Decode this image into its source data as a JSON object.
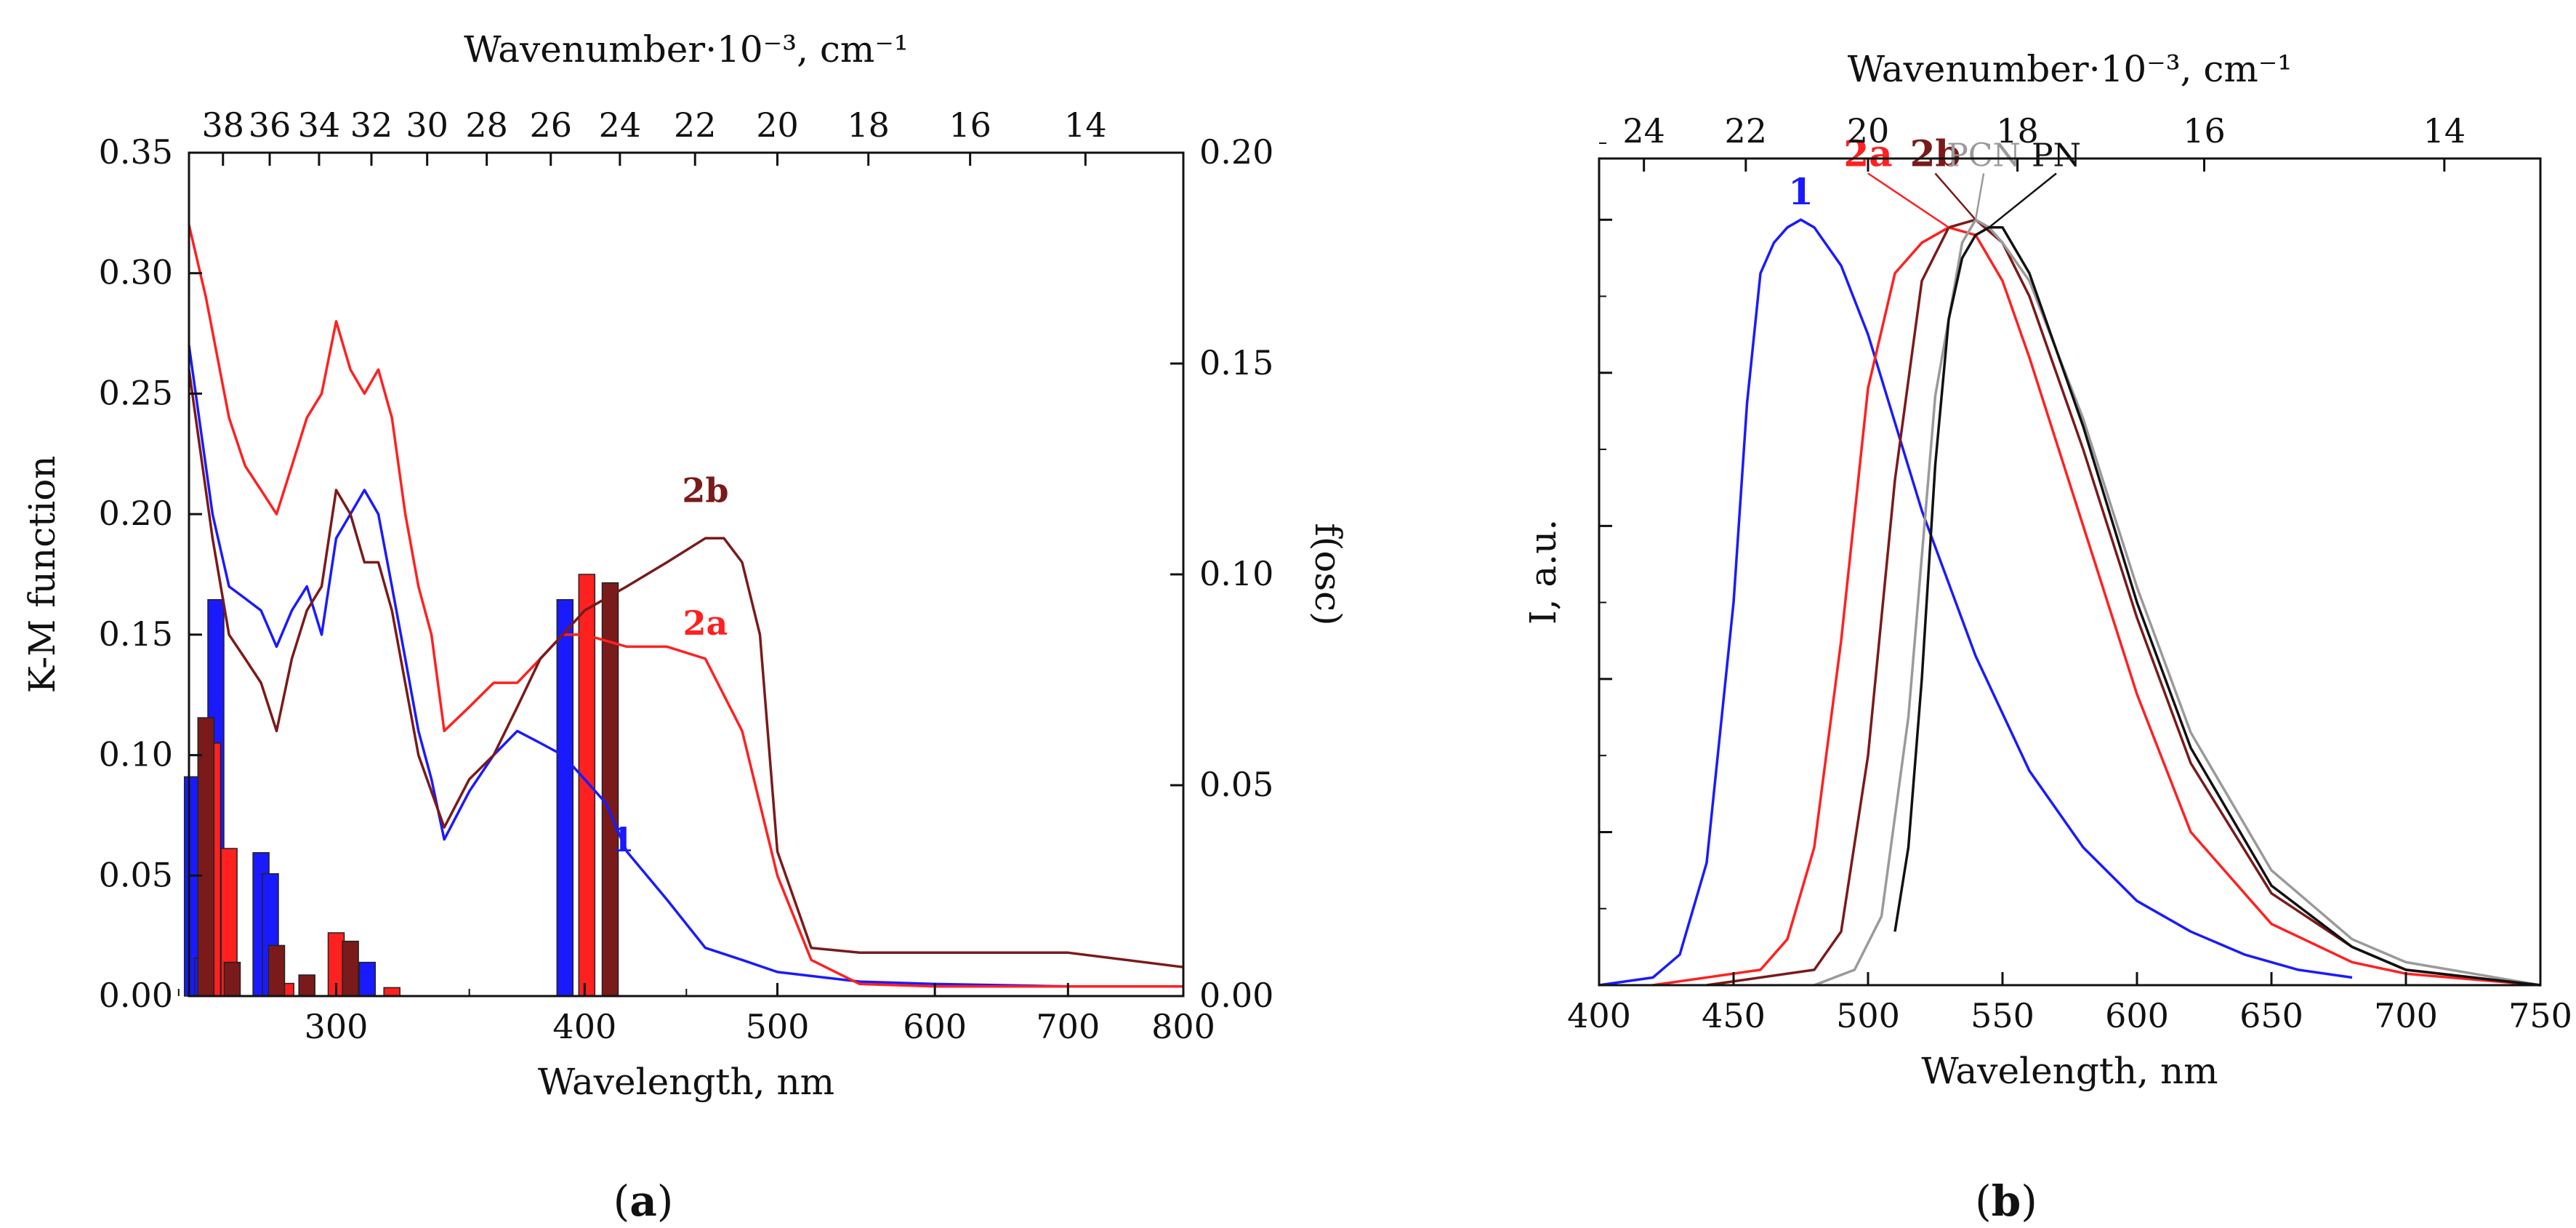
{
  "panel_labels": {
    "a_open": "(",
    "a_letter": "a",
    "a_close": ")",
    "b_open": "(",
    "b_letter": "b",
    "b_close": ")"
  },
  "colors": {
    "c1": "#1a1aff",
    "c2a": "#ff2020",
    "c2b": "#7a1a1a",
    "cPCN": "#9a9a9a",
    "cPN": "#111111"
  },
  "chart_data": [
    {
      "id": "a",
      "type": "line",
      "xscale": "log",
      "xlabel": "Wavelength, nm",
      "ylabel": "K-M function",
      "y2label": "f(osc)",
      "top_xlabel": "Wavenumber·10⁻³, cm⁻¹",
      "xlim": [
        253,
        800
      ],
      "ylim": [
        0,
        0.35
      ],
      "y2lim": [
        0,
        0.2
      ],
      "xticks": [
        {
          "v": 300,
          "l": "300"
        },
        {
          "v": 400,
          "l": "400"
        },
        {
          "v": 500,
          "l": "500"
        },
        {
          "v": 600,
          "l": "600"
        },
        {
          "v": 700,
          "l": "700"
        },
        {
          "v": 800,
          "l": "800"
        }
      ],
      "yticks": [
        {
          "v": 0,
          "l": "0.00"
        },
        {
          "v": 0.05,
          "l": "0.05"
        },
        {
          "v": 0.1,
          "l": "0.10"
        },
        {
          "v": 0.15,
          "l": "0.15"
        },
        {
          "v": 0.2,
          "l": "0.20"
        },
        {
          "v": 0.25,
          "l": "0.25"
        },
        {
          "v": 0.3,
          "l": "0.30"
        },
        {
          "v": 0.35,
          "l": "0.35"
        }
      ],
      "y2ticks": [
        {
          "v": 0,
          "l": "0.00"
        },
        {
          "v": 0.05,
          "l": "0.05"
        },
        {
          "v": 0.1,
          "l": "0.10"
        },
        {
          "v": 0.15,
          "l": "0.15"
        },
        {
          "v": 0.2,
          "l": "0.20"
        }
      ],
      "top_ticks": [
        {
          "v": 38,
          "l": "38"
        },
        {
          "v": 36,
          "l": "36"
        },
        {
          "v": 34,
          "l": "34"
        },
        {
          "v": 32,
          "l": "32"
        },
        {
          "v": 30,
          "l": "30"
        },
        {
          "v": 28,
          "l": "28"
        },
        {
          "v": 26,
          "l": "26"
        },
        {
          "v": 24,
          "l": "24"
        },
        {
          "v": 22,
          "l": "22"
        },
        {
          "v": 20,
          "l": "20"
        },
        {
          "v": 18,
          "l": "18"
        },
        {
          "v": 16,
          "l": "16"
        },
        {
          "v": 14,
          "l": "14"
        }
      ],
      "series": [
        {
          "name": "1",
          "color": "#1a1aff",
          "label_at": [
            418,
            0.06
          ],
          "x": [
            253,
            260,
            265,
            270,
            275,
            280,
            285,
            290,
            295,
            300,
            305,
            310,
            315,
            320,
            325,
            330,
            335,
            340,
            350,
            360,
            370,
            380,
            390,
            400,
            410,
            420,
            440,
            460,
            480,
            500,
            550,
            600,
            700,
            800
          ],
          "y": [
            0.27,
            0.2,
            0.17,
            0.165,
            0.16,
            0.145,
            0.16,
            0.17,
            0.15,
            0.19,
            0.2,
            0.21,
            0.2,
            0.17,
            0.14,
            0.11,
            0.09,
            0.065,
            0.085,
            0.1,
            0.11,
            0.105,
            0.1,
            0.09,
            0.08,
            0.06,
            0.04,
            0.02,
            0.015,
            0.01,
            0.006,
            0.005,
            0.004,
            0.004
          ]
        },
        {
          "name": "2a",
          "color": "#ff2020",
          "label_at": [
            460,
            0.15
          ],
          "x": [
            253,
            258,
            265,
            270,
            275,
            280,
            285,
            290,
            295,
            300,
            305,
            310,
            315,
            320,
            325,
            330,
            335,
            340,
            350,
            360,
            370,
            380,
            390,
            400,
            420,
            440,
            460,
            480,
            500,
            520,
            550,
            600,
            700,
            800
          ],
          "y": [
            0.32,
            0.29,
            0.24,
            0.22,
            0.21,
            0.2,
            0.22,
            0.24,
            0.25,
            0.28,
            0.26,
            0.25,
            0.26,
            0.24,
            0.2,
            0.17,
            0.15,
            0.11,
            0.12,
            0.13,
            0.13,
            0.14,
            0.15,
            0.15,
            0.145,
            0.145,
            0.14,
            0.11,
            0.05,
            0.015,
            0.005,
            0.004,
            0.004,
            0.004
          ]
        },
        {
          "name": "2b",
          "color": "#7a1a1a",
          "label_at": [
            460,
            0.205
          ],
          "x": [
            253,
            260,
            265,
            270,
            275,
            280,
            285,
            290,
            295,
            300,
            305,
            310,
            315,
            320,
            330,
            340,
            350,
            360,
            370,
            380,
            390,
            400,
            420,
            440,
            460,
            470,
            480,
            490,
            500,
            520,
            550,
            600,
            700,
            800
          ],
          "y": [
            0.26,
            0.19,
            0.15,
            0.14,
            0.13,
            0.11,
            0.14,
            0.16,
            0.17,
            0.21,
            0.2,
            0.18,
            0.18,
            0.16,
            0.1,
            0.07,
            0.09,
            0.1,
            0.12,
            0.14,
            0.15,
            0.16,
            0.17,
            0.18,
            0.19,
            0.19,
            0.18,
            0.15,
            0.06,
            0.02,
            0.018,
            0.018,
            0.018,
            0.012
          ]
        }
      ],
      "bars": [
        {
          "name": "1",
          "color": "#1a1aff",
          "x": [
            254,
            257,
            259,
            261,
            275,
            278,
            306,
            311,
            391
          ],
          "f": [
            0.052,
            0.009,
            0.015,
            0.094,
            0.034,
            0.029,
            0.005,
            0.008,
            0.094
          ]
        },
        {
          "name": "2a",
          "color": "#ff2020",
          "x": [
            260,
            265,
            283,
            300,
            320,
            401
          ],
          "f": [
            0.06,
            0.035,
            0.003,
            0.015,
            0.002,
            0.1
          ]
        },
        {
          "name": "2b",
          "color": "#7a1a1a",
          "x": [
            258,
            266,
            280,
            290,
            305,
            412
          ],
          "f": [
            0.066,
            0.008,
            0.012,
            0.005,
            0.013,
            0.098
          ]
        }
      ]
    },
    {
      "id": "b",
      "type": "line",
      "xlabel": "Wavelength, nm",
      "ylabel": "I, a.u.",
      "top_xlabel": "Wavenumber·10⁻³, cm⁻¹",
      "xlim": [
        400,
        750
      ],
      "ylim": [
        0,
        1.08
      ],
      "xticks": [
        {
          "v": 400,
          "l": "400"
        },
        {
          "v": 450,
          "l": "450"
        },
        {
          "v": 500,
          "l": "500"
        },
        {
          "v": 550,
          "l": "550"
        },
        {
          "v": 600,
          "l": "600"
        },
        {
          "v": 650,
          "l": "650"
        },
        {
          "v": 700,
          "l": "700"
        },
        {
          "v": 750,
          "l": "750"
        }
      ],
      "top_ticks": [
        {
          "v": 24,
          "l": "24"
        },
        {
          "v": 22,
          "l": "22"
        },
        {
          "v": 20,
          "l": "20"
        },
        {
          "v": 18,
          "l": "18"
        },
        {
          "v": 16,
          "l": "16"
        },
        {
          "v": 14,
          "l": "14"
        }
      ],
      "series": [
        {
          "name": "1",
          "color": "#1a1aff",
          "label_at": [
            475,
            1.02
          ],
          "x": [
            400,
            420,
            430,
            440,
            450,
            455,
            460,
            465,
            470,
            475,
            480,
            490,
            500,
            520,
            540,
            560,
            580,
            600,
            620,
            640,
            660,
            680
          ],
          "y": [
            0.0,
            0.01,
            0.04,
            0.16,
            0.5,
            0.76,
            0.93,
            0.97,
            0.99,
            1.0,
            0.99,
            0.94,
            0.85,
            0.62,
            0.43,
            0.28,
            0.18,
            0.11,
            0.07,
            0.04,
            0.02,
            0.01
          ]
        },
        {
          "name": "2a",
          "color": "#ff2020",
          "label_at": [
            500,
            1.07
          ],
          "x": [
            420,
            460,
            470,
            480,
            490,
            500,
            510,
            520,
            530,
            540,
            550,
            560,
            580,
            600,
            620,
            650,
            680,
            700,
            750
          ],
          "y": [
            0.0,
            0.02,
            0.06,
            0.18,
            0.45,
            0.78,
            0.93,
            0.97,
            0.99,
            0.98,
            0.92,
            0.82,
            0.6,
            0.38,
            0.2,
            0.08,
            0.03,
            0.015,
            0.0
          ]
        },
        {
          "name": "2b",
          "color": "#7a1a1a",
          "label_at": [
            525,
            1.07
          ],
          "x": [
            440,
            480,
            490,
            500,
            510,
            520,
            530,
            540,
            550,
            560,
            580,
            600,
            620,
            650,
            680,
            700,
            750
          ],
          "y": [
            0.0,
            0.02,
            0.07,
            0.3,
            0.66,
            0.92,
            0.99,
            1.0,
            0.97,
            0.9,
            0.7,
            0.48,
            0.29,
            0.12,
            0.05,
            0.02,
            0.0
          ]
        },
        {
          "name": "PCN",
          "color": "#9a9a9a",
          "label_at": [
            543,
            1.07
          ],
          "x": [
            480,
            495,
            505,
            515,
            525,
            535,
            540,
            545,
            550,
            560,
            580,
            600,
            620,
            650,
            680,
            700,
            750
          ],
          "y": [
            0.0,
            0.02,
            0.09,
            0.35,
            0.77,
            0.97,
            1.0,
            0.99,
            0.97,
            0.92,
            0.74,
            0.52,
            0.33,
            0.15,
            0.06,
            0.03,
            0.0
          ]
        },
        {
          "name": "PN",
          "color": "#111111",
          "label_at": [
            570,
            1.07
          ],
          "x": [
            510,
            515,
            520,
            525,
            530,
            535,
            540,
            545,
            550,
            560,
            580,
            600,
            620,
            650,
            680,
            700,
            750
          ],
          "y": [
            0.07,
            0.18,
            0.4,
            0.68,
            0.87,
            0.95,
            0.98,
            0.99,
            0.99,
            0.93,
            0.73,
            0.5,
            0.31,
            0.13,
            0.05,
            0.02,
            0.0
          ]
        }
      ]
    }
  ]
}
